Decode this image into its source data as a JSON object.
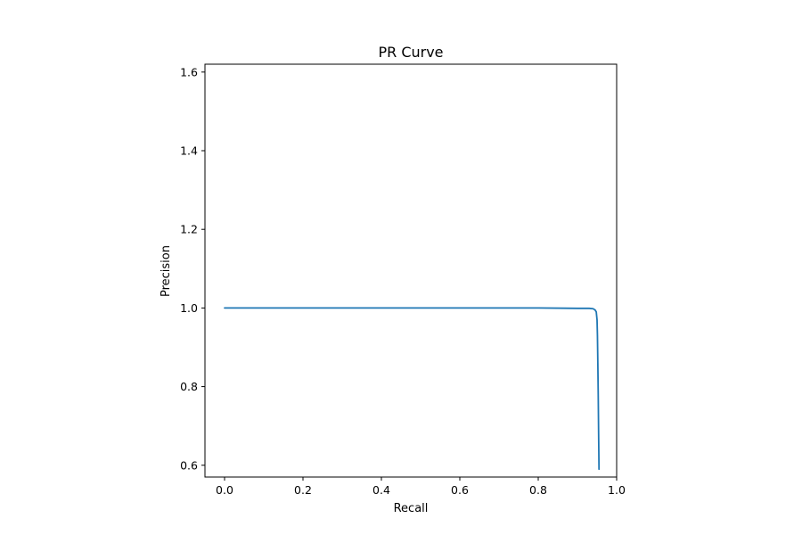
{
  "chart_data": {
    "type": "line",
    "title": "PR Curve",
    "xlabel": "Recall",
    "ylabel": "Precision",
    "xlim": [
      -0.05,
      1.0
    ],
    "ylim": [
      0.57,
      1.62
    ],
    "xticks": [
      0.0,
      0.2,
      0.4,
      0.6,
      0.8,
      1.0
    ],
    "xtick_labels": [
      "0.0",
      "0.2",
      "0.4",
      "0.6",
      "0.8",
      "1.0"
    ],
    "yticks": [
      0.6,
      0.8,
      1.0,
      1.2,
      1.4,
      1.6
    ],
    "ytick_labels": [
      "0.6",
      "0.8",
      "1.0",
      "1.2",
      "1.4",
      "1.6"
    ],
    "grid": false,
    "series": [
      {
        "color": "#1f77b4",
        "x": [
          0.0,
          0.1,
          0.2,
          0.3,
          0.4,
          0.5,
          0.6,
          0.7,
          0.8,
          0.9,
          0.93,
          0.94,
          0.945,
          0.948,
          0.95,
          0.951,
          0.952,
          0.953,
          0.954,
          0.955
        ],
        "y": [
          1.0,
          1.0,
          1.0,
          1.0,
          1.0,
          1.0,
          1.0,
          1.0,
          1.0,
          0.999,
          0.999,
          0.998,
          0.995,
          0.99,
          0.97,
          0.93,
          0.86,
          0.78,
          0.68,
          0.59
        ]
      }
    ]
  }
}
